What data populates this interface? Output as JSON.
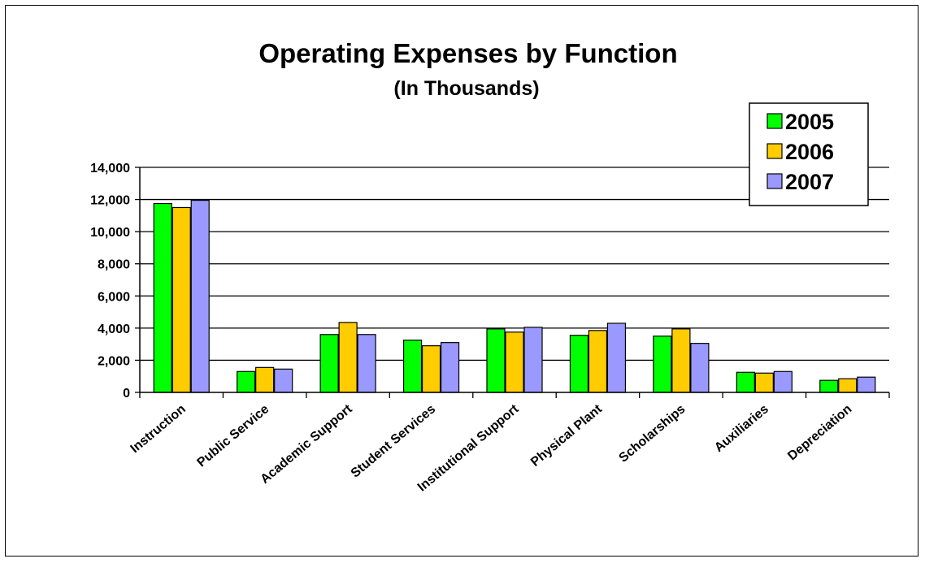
{
  "chart_data": {
    "type": "bar",
    "title": "Operating Expenses by Function",
    "subtitle": "(In Thousands)",
    "xlabel": "",
    "ylabel": "",
    "ylim": [
      0,
      14000
    ],
    "yticks": [
      "0",
      "2,000",
      "4,000",
      "6,000",
      "8,000",
      "10,000",
      "12,000",
      "14,000"
    ],
    "ytick_values": [
      0,
      2000,
      4000,
      6000,
      8000,
      10000,
      12000,
      14000
    ],
    "grid": true,
    "legend_position": "top-right",
    "categories": [
      "Instruction",
      "Public Service",
      "Academic Support",
      "Student Services",
      "Institutional Support",
      "Physical Plant",
      "Scholarships",
      "Auxiliaries",
      "Depreciation"
    ],
    "series": [
      {
        "name": "2005",
        "color": "#00ff00",
        "values": [
          11750,
          1300,
          3600,
          3250,
          3950,
          3550,
          3500,
          1250,
          750
        ]
      },
      {
        "name": "2006",
        "color": "#ffcc00",
        "values": [
          11500,
          1550,
          4350,
          2900,
          3750,
          3850,
          3950,
          1200,
          850
        ]
      },
      {
        "name": "2007",
        "color": "#9999ff",
        "values": [
          11950,
          1450,
          3600,
          3100,
          4050,
          4300,
          3050,
          1300,
          950
        ]
      }
    ]
  }
}
